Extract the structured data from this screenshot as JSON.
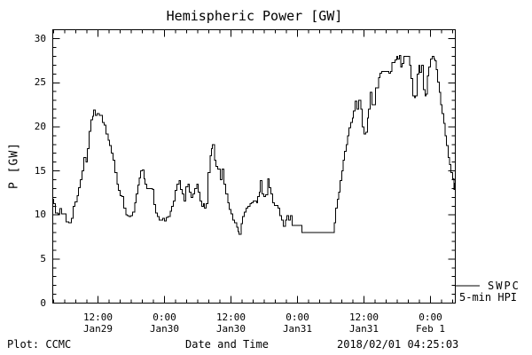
{
  "bg_color": "#ffffff",
  "fg_color": "#000000",
  "footer": {
    "left": "Plot: CCMC",
    "center": "Date and Time",
    "right": "2018/02/01 04:25:03"
  },
  "legend": {
    "line1": "SWPC",
    "line2": "5-min HPI",
    "position": "bottom-right-outside"
  },
  "chart_data": {
    "type": "line",
    "title": "Hemispheric Power [GW]",
    "xlabel": "Date and Time",
    "ylabel": "P [GW]",
    "line_color": "#000000",
    "line_style": "step",
    "grid": false,
    "x_unit": "hours since 2018-01-29 00:00 UT",
    "xlim": [
      3.7,
      76.5
    ],
    "ylim": [
      0,
      31
    ],
    "y_major_ticks": [
      0,
      5,
      10,
      15,
      20,
      25,
      30
    ],
    "y_minor_step": 1,
    "x_minor_step_hours": 2,
    "x_major_ticks": [
      {
        "hour": 12,
        "time": "12:00",
        "date": "Jan29"
      },
      {
        "hour": 24,
        "time": "0:00",
        "date": "Jan30"
      },
      {
        "hour": 36,
        "time": "12:00",
        "date": "Jan30"
      },
      {
        "hour": 48,
        "time": "0:00",
        "date": "Jan31"
      },
      {
        "hour": 60,
        "time": "12:00",
        "date": "Jan31"
      },
      {
        "hour": 72,
        "time": "0:00",
        "date": "Feb 1"
      }
    ],
    "series": [
      {
        "name": "SWPC 5-min HPI",
        "points": [
          [
            3.7,
            11.8
          ],
          [
            4.0,
            11.3
          ],
          [
            4.3,
            10.2
          ],
          [
            4.8,
            10.1
          ],
          [
            5.1,
            10.7
          ],
          [
            5.4,
            10.1
          ],
          [
            5.8,
            10.1
          ],
          [
            6.2,
            9.2
          ],
          [
            6.7,
            9.1
          ],
          [
            7.2,
            9.6
          ],
          [
            7.5,
            11.0
          ],
          [
            7.8,
            11.5
          ],
          [
            8.2,
            12.2
          ],
          [
            8.5,
            13.1
          ],
          [
            8.8,
            14.0
          ],
          [
            9.1,
            15.0
          ],
          [
            9.4,
            16.5
          ],
          [
            9.8,
            16.0
          ],
          [
            10.1,
            17.5
          ],
          [
            10.4,
            19.5
          ],
          [
            10.7,
            20.8
          ],
          [
            11.0,
            21.2
          ],
          [
            11.2,
            21.9
          ],
          [
            11.5,
            21.3
          ],
          [
            11.8,
            21.5
          ],
          [
            12.2,
            21.3
          ],
          [
            12.5,
            21.3
          ],
          [
            12.8,
            20.5
          ],
          [
            13.1,
            20.2
          ],
          [
            13.4,
            19.2
          ],
          [
            13.8,
            18.5
          ],
          [
            14.1,
            17.9
          ],
          [
            14.4,
            17.0
          ],
          [
            14.7,
            16.2
          ],
          [
            15.0,
            14.8
          ],
          [
            15.4,
            13.5
          ],
          [
            15.7,
            12.8
          ],
          [
            16.0,
            12.2
          ],
          [
            16.3,
            12.1
          ],
          [
            16.6,
            10.8
          ],
          [
            17.0,
            10.0
          ],
          [
            17.3,
            9.9
          ],
          [
            17.6,
            9.8
          ],
          [
            17.9,
            9.9
          ],
          [
            18.2,
            10.3
          ],
          [
            18.6,
            11.4
          ],
          [
            18.9,
            12.4
          ],
          [
            19.2,
            13.4
          ],
          [
            19.4,
            14.2
          ],
          [
            19.7,
            15.0
          ],
          [
            20.0,
            15.1
          ],
          [
            20.3,
            14.1
          ],
          [
            20.5,
            13.5
          ],
          [
            20.8,
            13.0
          ],
          [
            21.1,
            13.0
          ],
          [
            21.4,
            13.0
          ],
          [
            21.8,
            12.9
          ],
          [
            22.1,
            11.2
          ],
          [
            22.4,
            10.2
          ],
          [
            22.7,
            9.8
          ],
          [
            23.0,
            9.4
          ],
          [
            23.4,
            9.4
          ],
          [
            23.7,
            9.6
          ],
          [
            24.0,
            9.3
          ],
          [
            24.3,
            9.7
          ],
          [
            24.6,
            9.8
          ],
          [
            25.0,
            10.4
          ],
          [
            25.3,
            11.0
          ],
          [
            25.6,
            11.6
          ],
          [
            25.9,
            12.8
          ],
          [
            26.2,
            13.5
          ],
          [
            26.6,
            13.9
          ],
          [
            26.9,
            12.9
          ],
          [
            27.2,
            12.4
          ],
          [
            27.5,
            11.6
          ],
          [
            27.8,
            13.2
          ],
          [
            28.2,
            13.5
          ],
          [
            28.5,
            12.6
          ],
          [
            28.8,
            12.0
          ],
          [
            29.1,
            12.4
          ],
          [
            29.4,
            13.0
          ],
          [
            29.8,
            13.5
          ],
          [
            30.1,
            12.6
          ],
          [
            30.4,
            11.6
          ],
          [
            30.7,
            11.0
          ],
          [
            31.0,
            11.3
          ],
          [
            31.2,
            10.8
          ],
          [
            31.5,
            11.3
          ],
          [
            31.8,
            14.8
          ],
          [
            32.2,
            16.7
          ],
          [
            32.5,
            17.5
          ],
          [
            32.6,
            18.0
          ],
          [
            33.0,
            16.2
          ],
          [
            33.3,
            15.5
          ],
          [
            33.6,
            15.2
          ],
          [
            33.9,
            15.2
          ],
          [
            34.1,
            14.0
          ],
          [
            34.4,
            15.2
          ],
          [
            34.7,
            13.5
          ],
          [
            35.0,
            12.4
          ],
          [
            35.4,
            11.4
          ],
          [
            35.7,
            10.6
          ],
          [
            36.0,
            10.1
          ],
          [
            36.3,
            9.4
          ],
          [
            36.6,
            9.1
          ],
          [
            37.0,
            8.6
          ],
          [
            37.3,
            8.1
          ],
          [
            37.4,
            7.8
          ],
          [
            37.8,
            9.0
          ],
          [
            38.1,
            9.8
          ],
          [
            38.4,
            10.3
          ],
          [
            38.7,
            10.8
          ],
          [
            39.0,
            11.0
          ],
          [
            39.4,
            11.3
          ],
          [
            39.7,
            11.4
          ],
          [
            40.0,
            11.6
          ],
          [
            40.3,
            11.6
          ],
          [
            40.6,
            11.4
          ],
          [
            40.8,
            12.1
          ],
          [
            41.1,
            12.6
          ],
          [
            41.3,
            13.9
          ],
          [
            41.6,
            12.4
          ],
          [
            41.9,
            12.1
          ],
          [
            42.2,
            12.3
          ],
          [
            42.6,
            14.1
          ],
          [
            42.9,
            13.1
          ],
          [
            43.2,
            12.4
          ],
          [
            43.5,
            11.4
          ],
          [
            43.8,
            11.1
          ],
          [
            44.2,
            11.1
          ],
          [
            44.5,
            10.8
          ],
          [
            44.8,
            9.9
          ],
          [
            45.1,
            9.4
          ],
          [
            45.4,
            8.7
          ],
          [
            45.8,
            9.4
          ],
          [
            46.1,
            9.9
          ],
          [
            46.4,
            9.4
          ],
          [
            46.7,
            9.9
          ],
          [
            47.0,
            8.8
          ],
          [
            47.5,
            8.8
          ],
          [
            48.0,
            8.8
          ],
          [
            48.5,
            8.8
          ],
          [
            48.8,
            8.0
          ],
          [
            49.6,
            8.0
          ],
          [
            50.4,
            8.0
          ],
          [
            51.2,
            8.0
          ],
          [
            52.0,
            8.0
          ],
          [
            52.8,
            8.0
          ],
          [
            53.6,
            8.0
          ],
          [
            54.2,
            8.0
          ],
          [
            54.6,
            9.1
          ],
          [
            54.9,
            10.8
          ],
          [
            55.2,
            11.8
          ],
          [
            55.4,
            12.6
          ],
          [
            55.7,
            13.9
          ],
          [
            56.0,
            15.0
          ],
          [
            56.2,
            16.2
          ],
          [
            56.5,
            17.2
          ],
          [
            56.8,
            18.0
          ],
          [
            57.0,
            19.0
          ],
          [
            57.3,
            19.9
          ],
          [
            57.6,
            20.5
          ],
          [
            57.9,
            21.0
          ],
          [
            58.1,
            21.8
          ],
          [
            58.4,
            22.9
          ],
          [
            58.7,
            22.0
          ],
          [
            59.0,
            23.0
          ],
          [
            59.4,
            22.0
          ],
          [
            59.7,
            20.0
          ],
          [
            60.0,
            19.2
          ],
          [
            60.3,
            19.4
          ],
          [
            60.6,
            21.0
          ],
          [
            60.8,
            22.0
          ],
          [
            61.1,
            23.9
          ],
          [
            61.4,
            22.5
          ],
          [
            61.8,
            22.5
          ],
          [
            62.1,
            24.4
          ],
          [
            62.6,
            25.6
          ],
          [
            62.9,
            26.1
          ],
          [
            63.2,
            26.3
          ],
          [
            63.7,
            26.3
          ],
          [
            64.2,
            26.3
          ],
          [
            64.5,
            26.1
          ],
          [
            64.8,
            26.3
          ],
          [
            65.0,
            27.3
          ],
          [
            65.3,
            27.3
          ],
          [
            65.6,
            27.6
          ],
          [
            65.9,
            28.0
          ],
          [
            66.1,
            27.7
          ],
          [
            66.4,
            28.1
          ],
          [
            66.6,
            26.8
          ],
          [
            66.9,
            27.2
          ],
          [
            67.2,
            28.0
          ],
          [
            67.5,
            28.0
          ],
          [
            67.8,
            28.0
          ],
          [
            68.2,
            27.0
          ],
          [
            68.5,
            25.5
          ],
          [
            68.8,
            23.5
          ],
          [
            69.1,
            23.3
          ],
          [
            69.3,
            23.5
          ],
          [
            69.6,
            26.0
          ],
          [
            69.9,
            27.0
          ],
          [
            70.1,
            26.2
          ],
          [
            70.4,
            27.0
          ],
          [
            70.7,
            24.2
          ],
          [
            71.0,
            23.5
          ],
          [
            71.2,
            23.7
          ],
          [
            71.4,
            25.8
          ],
          [
            71.7,
            26.8
          ],
          [
            72.0,
            27.7
          ],
          [
            72.3,
            28.0
          ],
          [
            72.6,
            27.7
          ],
          [
            72.8,
            27.5
          ],
          [
            73.0,
            26.5
          ],
          [
            73.3,
            25.1
          ],
          [
            73.6,
            23.9
          ],
          [
            73.8,
            22.5
          ],
          [
            74.1,
            21.5
          ],
          [
            74.4,
            20.4
          ],
          [
            74.6,
            19.0
          ],
          [
            74.9,
            17.9
          ],
          [
            75.2,
            16.5
          ],
          [
            75.4,
            15.7
          ],
          [
            75.7,
            14.8
          ],
          [
            76.0,
            14.1
          ],
          [
            76.2,
            12.9
          ],
          [
            76.3,
            13.6
          ],
          [
            76.5,
            13.2
          ]
        ]
      }
    ]
  }
}
